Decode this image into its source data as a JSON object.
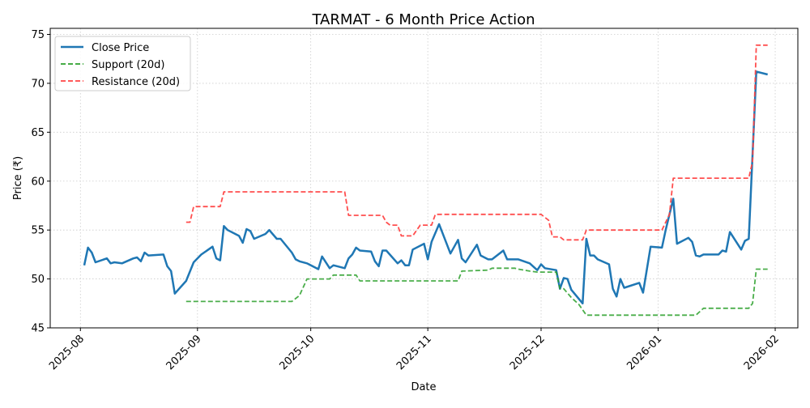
{
  "chart_data": {
    "type": "line",
    "title": "TARMAT - 6 Month Price Action",
    "xlabel": "Date",
    "ylabel": "Price (₹)",
    "ylim": [
      45,
      75
    ],
    "xlim": [
      "2025-07-24",
      "2026-02-07"
    ],
    "y_ticks": [
      45,
      50,
      55,
      60,
      65,
      70,
      75
    ],
    "x_ticks": [
      "2025-08",
      "2025-09",
      "2025-10",
      "2025-11",
      "2025-12",
      "2026-01",
      "2026-02"
    ],
    "grid": true,
    "legend_position": "top-left",
    "series": [
      {
        "name": "Close Price",
        "color": "#1f77b4",
        "style": "solid",
        "points": [
          [
            "2025-08-02",
            51.4
          ],
          [
            "2025-08-03",
            53.2
          ],
          [
            "2025-08-04",
            52.7
          ],
          [
            "2025-08-05",
            51.7
          ],
          [
            "2025-08-08",
            52.1
          ],
          [
            "2025-08-09",
            51.6
          ],
          [
            "2025-08-10",
            51.7
          ],
          [
            "2025-08-12",
            51.6
          ],
          [
            "2025-08-15",
            52.1
          ],
          [
            "2025-08-16",
            52.2
          ],
          [
            "2025-08-17",
            51.8
          ],
          [
            "2025-08-18",
            52.7
          ],
          [
            "2025-08-19",
            52.4
          ],
          [
            "2025-08-23",
            52.5
          ],
          [
            "2025-08-24",
            51.3
          ],
          [
            "2025-08-25",
            50.8
          ],
          [
            "2025-08-26",
            48.5
          ],
          [
            "2025-08-29",
            49.8
          ],
          [
            "2025-08-31",
            51.7
          ],
          [
            "2025-09-02",
            52.5
          ],
          [
            "2025-09-05",
            53.3
          ],
          [
            "2025-09-06",
            52.1
          ],
          [
            "2025-09-07",
            51.9
          ],
          [
            "2025-09-08",
            55.4
          ],
          [
            "2025-09-09",
            55.0
          ],
          [
            "2025-09-12",
            54.4
          ],
          [
            "2025-09-13",
            53.7
          ],
          [
            "2025-09-14",
            55.1
          ],
          [
            "2025-09-15",
            54.9
          ],
          [
            "2025-09-16",
            54.1
          ],
          [
            "2025-09-19",
            54.6
          ],
          [
            "2025-09-20",
            55.0
          ],
          [
            "2025-09-22",
            54.1
          ],
          [
            "2025-09-23",
            54.1
          ],
          [
            "2025-09-26",
            52.7
          ],
          [
            "2025-09-27",
            52.0
          ],
          [
            "2025-09-28",
            51.8
          ],
          [
            "2025-09-30",
            51.6
          ],
          [
            "2025-10-03",
            51.0
          ],
          [
            "2025-10-04",
            52.3
          ],
          [
            "2025-10-06",
            51.1
          ],
          [
            "2025-10-07",
            51.4
          ],
          [
            "2025-10-10",
            51.1
          ],
          [
            "2025-10-11",
            52.1
          ],
          [
            "2025-10-12",
            52.5
          ],
          [
            "2025-10-13",
            53.2
          ],
          [
            "2025-10-14",
            52.9
          ],
          [
            "2025-10-17",
            52.8
          ],
          [
            "2025-10-18",
            51.8
          ],
          [
            "2025-10-19",
            51.3
          ],
          [
            "2025-10-20",
            52.9
          ],
          [
            "2025-10-21",
            52.9
          ],
          [
            "2025-10-24",
            51.6
          ],
          [
            "2025-10-25",
            51.9
          ],
          [
            "2025-10-26",
            51.4
          ],
          [
            "2025-10-27",
            51.4
          ],
          [
            "2025-10-28",
            53.0
          ],
          [
            "2025-10-31",
            53.6
          ],
          [
            "2025-11-01",
            52.0
          ],
          [
            "2025-11-02",
            53.8
          ],
          [
            "2025-11-04",
            55.6
          ],
          [
            "2025-11-07",
            52.6
          ],
          [
            "2025-11-09",
            54.0
          ],
          [
            "2025-11-10",
            52.1
          ],
          [
            "2025-11-11",
            51.7
          ],
          [
            "2025-11-14",
            53.5
          ],
          [
            "2025-11-15",
            52.4
          ],
          [
            "2025-11-17",
            52.0
          ],
          [
            "2025-11-18",
            52.0
          ],
          [
            "2025-11-21",
            52.9
          ],
          [
            "2025-11-22",
            52.0
          ],
          [
            "2025-11-25",
            52.0
          ],
          [
            "2025-11-28",
            51.6
          ],
          [
            "2025-11-30",
            50.9
          ],
          [
            "2025-12-01",
            51.5
          ],
          [
            "2025-12-02",
            51.1
          ],
          [
            "2025-12-05",
            50.9
          ],
          [
            "2025-12-06",
            49.0
          ],
          [
            "2025-12-07",
            50.1
          ],
          [
            "2025-12-08",
            50.0
          ],
          [
            "2025-12-09",
            48.9
          ],
          [
            "2025-12-12",
            47.5
          ],
          [
            "2025-12-13",
            54.1
          ],
          [
            "2025-12-14",
            52.4
          ],
          [
            "2025-12-15",
            52.4
          ],
          [
            "2025-12-16",
            52.0
          ],
          [
            "2025-12-19",
            51.5
          ],
          [
            "2025-12-20",
            49.0
          ],
          [
            "2025-12-21",
            48.2
          ],
          [
            "2025-12-22",
            50.0
          ],
          [
            "2025-12-23",
            49.1
          ],
          [
            "2025-12-27",
            49.6
          ],
          [
            "2025-12-28",
            48.6
          ],
          [
            "2025-12-30",
            53.3
          ],
          [
            "2026-01-02",
            53.2
          ],
          [
            "2026-01-03",
            55.0
          ],
          [
            "2026-01-05",
            58.2
          ],
          [
            "2026-01-06",
            53.6
          ],
          [
            "2026-01-09",
            54.2
          ],
          [
            "2026-01-10",
            53.8
          ],
          [
            "2026-01-11",
            52.4
          ],
          [
            "2026-01-12",
            52.3
          ],
          [
            "2026-01-13",
            52.5
          ],
          [
            "2026-01-17",
            52.5
          ],
          [
            "2026-01-18",
            52.9
          ],
          [
            "2026-01-19",
            52.8
          ],
          [
            "2026-01-20",
            54.8
          ],
          [
            "2026-01-23",
            53.0
          ],
          [
            "2026-01-24",
            53.9
          ],
          [
            "2026-01-25",
            54.1
          ],
          [
            "2026-01-27",
            71.2
          ],
          [
            "2026-01-30",
            70.9
          ]
        ]
      },
      {
        "name": "Support (20d)",
        "color": "#2ca02c",
        "style": "dashed",
        "points": [
          [
            "2025-08-29",
            47.7
          ],
          [
            "2025-09-26",
            47.7
          ],
          [
            "2025-09-28",
            48.3
          ],
          [
            "2025-09-30",
            50.0
          ],
          [
            "2025-10-06",
            50.0
          ],
          [
            "2025-10-07",
            50.4
          ],
          [
            "2025-10-13",
            50.4
          ],
          [
            "2025-10-14",
            49.8
          ],
          [
            "2025-11-09",
            49.8
          ],
          [
            "2025-11-10",
            50.8
          ],
          [
            "2025-11-17",
            50.9
          ],
          [
            "2025-11-18",
            51.1
          ],
          [
            "2025-11-24",
            51.1
          ],
          [
            "2025-11-25",
            51.0
          ],
          [
            "2025-11-28",
            50.8
          ],
          [
            "2025-11-30",
            50.7
          ],
          [
            "2025-12-05",
            50.7
          ],
          [
            "2025-12-06",
            49.0
          ],
          [
            "2025-12-07",
            49.0
          ],
          [
            "2025-12-09",
            48.1
          ],
          [
            "2025-12-11",
            47.4
          ],
          [
            "2025-12-13",
            46.3
          ],
          [
            "2026-01-11",
            46.3
          ],
          [
            "2026-01-13",
            47.0
          ],
          [
            "2026-01-25",
            47.0
          ],
          [
            "2026-01-26",
            47.5
          ],
          [
            "2026-01-27",
            51.0
          ],
          [
            "2026-01-30",
            51.0
          ]
        ]
      },
      {
        "name": "Resistance (20d)",
        "color": "#ff4444",
        "style": "dashed",
        "points": [
          [
            "2025-08-29",
            55.8
          ],
          [
            "2025-08-30",
            55.8
          ],
          [
            "2025-08-31",
            57.4
          ],
          [
            "2025-09-07",
            57.4
          ],
          [
            "2025-09-08",
            58.9
          ],
          [
            "2025-10-10",
            58.9
          ],
          [
            "2025-10-11",
            56.5
          ],
          [
            "2025-10-20",
            56.5
          ],
          [
            "2025-10-21",
            55.8
          ],
          [
            "2025-10-22",
            55.5
          ],
          [
            "2025-10-24",
            55.5
          ],
          [
            "2025-10-25",
            54.4
          ],
          [
            "2025-10-28",
            54.4
          ],
          [
            "2025-10-30",
            55.5
          ],
          [
            "2025-11-02",
            55.5
          ],
          [
            "2025-11-03",
            56.6
          ],
          [
            "2025-12-01",
            56.6
          ],
          [
            "2025-12-03",
            56.0
          ],
          [
            "2025-12-04",
            54.3
          ],
          [
            "2025-12-06",
            54.3
          ],
          [
            "2025-12-07",
            54.0
          ],
          [
            "2025-12-12",
            54.0
          ],
          [
            "2025-12-13",
            55.0
          ],
          [
            "2026-01-02",
            55.0
          ],
          [
            "2026-01-04",
            56.6
          ],
          [
            "2026-01-05",
            60.3
          ],
          [
            "2026-01-25",
            60.3
          ],
          [
            "2026-01-26",
            62.0
          ],
          [
            "2026-01-27",
            73.9
          ],
          [
            "2026-01-30",
            73.9
          ]
        ]
      }
    ]
  }
}
